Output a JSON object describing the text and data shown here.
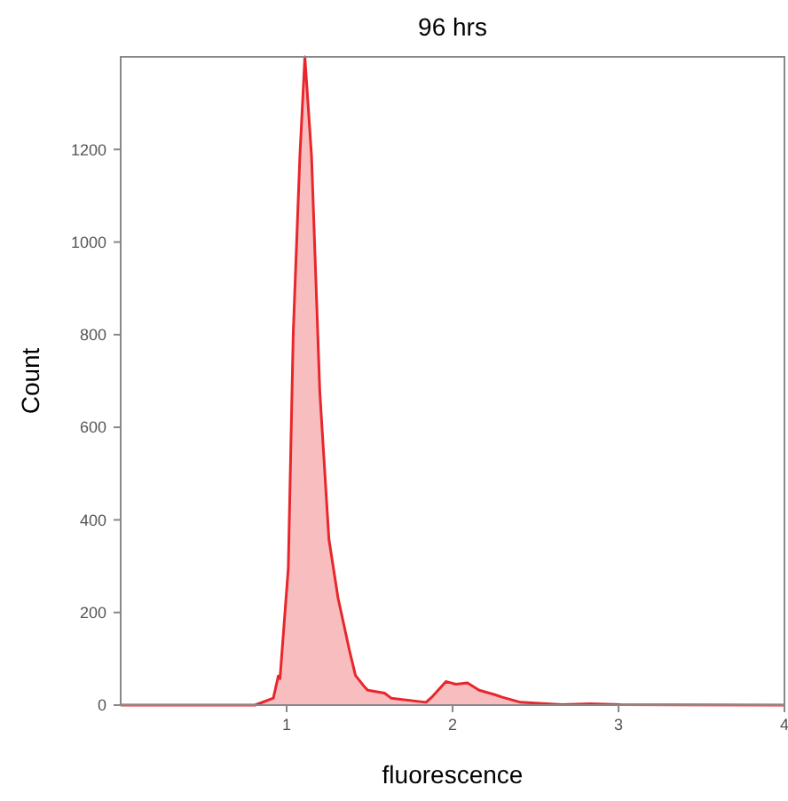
{
  "chart_data": {
    "type": "area",
    "title": "96 hrs",
    "xlabel": "fluorescence",
    "ylabel": "Count",
    "x": [
      0,
      0.81,
      0.92,
      0.95,
      0.96,
      1.01,
      1.04,
      1.08,
      1.11,
      1.15,
      1.2,
      1.255,
      1.31,
      1.38,
      1.415,
      1.47,
      1.49,
      1.59,
      1.63,
      1.84,
      1.88,
      1.96,
      2.02,
      2.09,
      2.16,
      2.25,
      2.3,
      2.41,
      2.66,
      2.83,
      3.01,
      4
    ],
    "series": [
      {
        "color": "#e8262b",
        "values": [
          0,
          0,
          15,
          63,
          57,
          295,
          805,
          1187,
          1400,
          1187,
          677,
          358,
          231,
          116,
          64,
          39,
          32,
          26,
          15,
          6,
          19,
          51,
          45,
          48,
          32,
          23,
          17,
          6,
          1,
          3,
          1,
          0
        ]
      }
    ],
    "xlim": [
      0,
      4
    ],
    "xticks": [
      1,
      2,
      3,
      4
    ],
    "ylim": [
      0,
      1400
    ],
    "yticks": [
      0,
      200,
      400,
      600,
      800,
      1000,
      1200
    ],
    "grid": false
  }
}
